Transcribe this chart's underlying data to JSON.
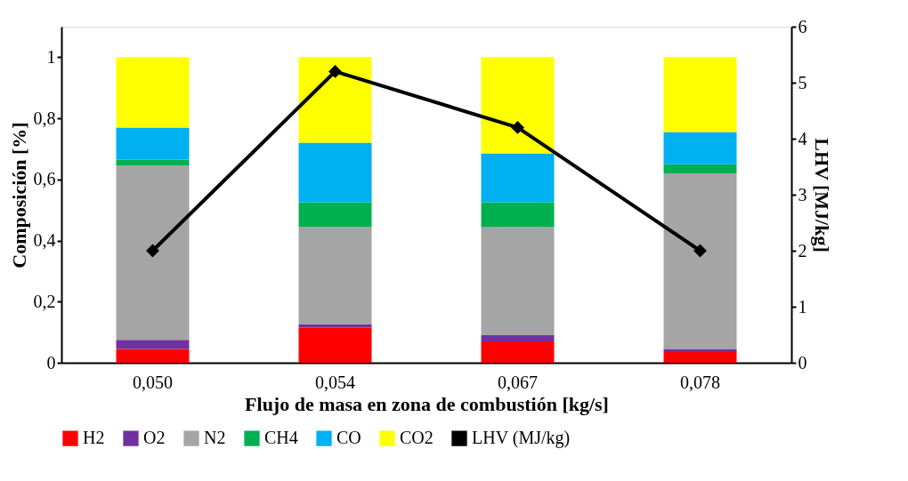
{
  "chart_data": {
    "type": "bar",
    "stacked": true,
    "xlabel": "Flujo de masa en zona de combustión [kg/s]",
    "ylabel": "Composición [%]",
    "y2label": "LHV [MJ/kg]",
    "categories": [
      "0,050",
      "0,054",
      "0,067",
      "0,078"
    ],
    "series": [
      {
        "name": "H2",
        "color": "#ff0000",
        "values": [
          0.045,
          0.115,
          0.07,
          0.035
        ]
      },
      {
        "name": "O2",
        "color": "#7030a0",
        "values": [
          0.03,
          0.01,
          0.02,
          0.01
        ]
      },
      {
        "name": "N2",
        "color": "#a5a5a5",
        "values": [
          0.57,
          0.32,
          0.355,
          0.575
        ]
      },
      {
        "name": "CH4",
        "color": "#00b050",
        "values": [
          0.02,
          0.08,
          0.08,
          0.03
        ]
      },
      {
        "name": "CO",
        "color": "#00b0f0",
        "values": [
          0.105,
          0.195,
          0.16,
          0.105
        ]
      },
      {
        "name": "CO2",
        "color": "#ffff00",
        "values": [
          0.23,
          0.28,
          0.315,
          0.245
        ]
      },
      {
        "name": "LHV (MJ/kg)",
        "color": "#000000",
        "type": "line",
        "axis": "y2",
        "marker": "diamond",
        "values": [
          2.0,
          5.2,
          4.2,
          2.0
        ]
      }
    ],
    "ylim": [
      0,
      1.1
    ],
    "yticks": [
      0,
      {
        "value": 0.2,
        "label": "0,2"
      },
      {
        "value": 0.4,
        "label": "0,4"
      },
      {
        "value": 0.6,
        "label": "0,6"
      },
      {
        "value": 0.8,
        "label": "0,8"
      },
      1
    ],
    "y2lim": [
      0,
      6
    ],
    "y2ticks": [
      0,
      1,
      2,
      3,
      4,
      5,
      6
    ],
    "grid": false,
    "legend": "bottom"
  }
}
